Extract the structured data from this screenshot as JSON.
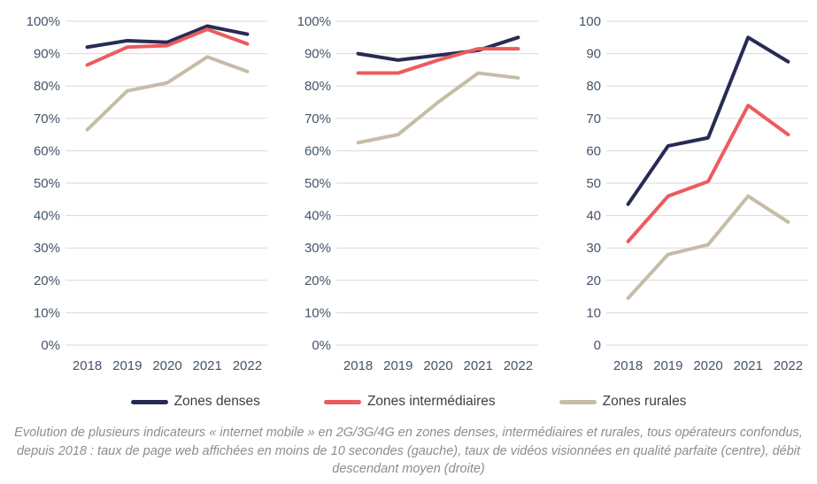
{
  "colors": {
    "navy": "#272B54",
    "red": "#EC5B5E",
    "tan": "#C6BCA8",
    "grid": "#D9D9D9",
    "tick_text": "#44546A",
    "legend_text": "#404040",
    "caption_text": "#8D8D8D"
  },
  "legend": [
    {
      "label": "Zones denses",
      "color": "#272B54"
    },
    {
      "label": "Zones intermédiaires",
      "color": "#EC5B5E"
    },
    {
      "label": "Zones rurales",
      "color": "#C6BCA8"
    }
  ],
  "caption": "Evolution de plusieurs indicateurs « internet mobile » en 2G/3G/4G en zones denses, intermédiaires et rurales, tous opérateurs confondus, depuis 2018 : taux de page web affichées en moins de 10 secondes (gauche), taux de vidéos visionnées en qualité parfaite (centre), débit descendant moyen (droite)",
  "chart_data": [
    {
      "type": "line",
      "title": "Taux de pages web affichées en moins de 10 secondes (gauche)",
      "categories": [
        "2018",
        "2019",
        "2020",
        "2021",
        "2022"
      ],
      "ylim": [
        0,
        100
      ],
      "ytick_step": 10,
      "y_format": "percent",
      "grid": true,
      "legend_position": "bottom-shared",
      "series": [
        {
          "name": "Zones denses",
          "color": "#272B54",
          "values": [
            92,
            94,
            93.5,
            98.5,
            96
          ]
        },
        {
          "name": "Zones intermédiaires",
          "color": "#EC5B5E",
          "values": [
            86.5,
            92,
            92.5,
            97.5,
            93
          ]
        },
        {
          "name": "Zones rurales",
          "color": "#C6BCA8",
          "values": [
            66.5,
            78.5,
            81,
            89,
            84.5
          ]
        }
      ]
    },
    {
      "type": "line",
      "title": "Taux de vidéos visionnées en qualité parfaite (centre)",
      "categories": [
        "2018",
        "2019",
        "2020",
        "2021",
        "2022"
      ],
      "ylim": [
        0,
        100
      ],
      "ytick_step": 10,
      "y_format": "percent",
      "grid": true,
      "legend_position": "bottom-shared",
      "series": [
        {
          "name": "Zones denses",
          "color": "#272B54",
          "values": [
            90,
            88,
            89.5,
            91,
            95
          ]
        },
        {
          "name": "Zones intermédiaires",
          "color": "#EC5B5E",
          "values": [
            84,
            84,
            88,
            91.5,
            91.5
          ]
        },
        {
          "name": "Zones rurales",
          "color": "#C6BCA8",
          "values": [
            62.5,
            65,
            75,
            84,
            82.5
          ]
        }
      ]
    },
    {
      "type": "line",
      "title": "Débit descendant moyen (droite)",
      "categories": [
        "2018",
        "2019",
        "2020",
        "2021",
        "2022"
      ],
      "ylim": [
        0,
        100
      ],
      "ytick_step": 10,
      "y_format": "number",
      "grid": true,
      "legend_position": "bottom-shared",
      "series": [
        {
          "name": "Zones denses",
          "color": "#272B54",
          "values": [
            43.5,
            61.5,
            64,
            95,
            87.5
          ]
        },
        {
          "name": "Zones intermédiaires",
          "color": "#EC5B5E",
          "values": [
            32,
            46,
            50.5,
            74,
            65
          ]
        },
        {
          "name": "Zones rurales",
          "color": "#C6BCA8",
          "values": [
            14.5,
            28,
            31,
            46,
            38
          ]
        }
      ]
    }
  ]
}
